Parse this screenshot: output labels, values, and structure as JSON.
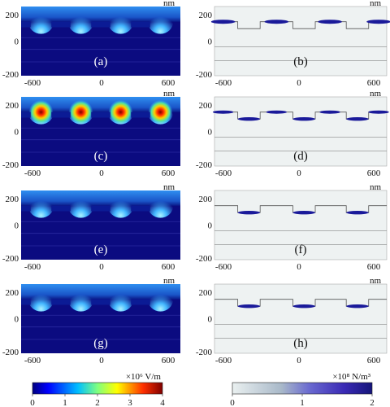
{
  "unit_nm": "nm",
  "x_ticks": [
    "-600",
    "0",
    "600"
  ],
  "y_ticks": [
    "200",
    "0",
    "-200"
  ],
  "panels": [
    {
      "label": "(a)",
      "type": "field"
    },
    {
      "label": "(b)",
      "type": "force"
    },
    {
      "label": "(c)",
      "type": "field"
    },
    {
      "label": "(d)",
      "type": "force"
    },
    {
      "label": "(e)",
      "type": "field"
    },
    {
      "label": "(f)",
      "type": "force"
    },
    {
      "label": "(g)",
      "type": "field"
    },
    {
      "label": "(h)",
      "type": "force"
    }
  ],
  "colorbar_field": {
    "unit": "×10⁶ V/m",
    "ticks": [
      "0",
      "1",
      "2",
      "3",
      "4"
    ],
    "range": [
      0,
      4
    ]
  },
  "colorbar_force": {
    "unit": "×10⁸ N/m³",
    "ticks": [
      "0",
      "1",
      "2"
    ],
    "range": [
      0,
      2
    ]
  },
  "colors": {
    "field_dark": "#0b0b80",
    "field_mid": "#1f6fe0",
    "field_hot": "#ff2200",
    "force_bg": "#eef2f2",
    "force_line": "#1a1a9a"
  }
}
